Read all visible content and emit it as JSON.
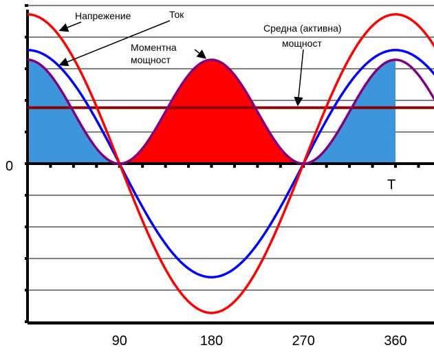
{
  "chart_data": {
    "type": "line",
    "x": [
      0,
      45,
      90,
      135,
      180,
      225,
      270,
      315,
      360,
      405
    ],
    "xlim": [
      0,
      405
    ],
    "ylim": [
      -1.0,
      1.0
    ],
    "x_tick_labels": [
      {
        "x": 90,
        "label": "90"
      },
      {
        "x": 180,
        "label": "180"
      },
      {
        "x": 270,
        "label": "270"
      },
      {
        "x": 360,
        "label": "360"
      }
    ],
    "zero_label": "0",
    "period_label": "T",
    "period_x": 360,
    "series": [
      {
        "name": "Напрежение",
        "kind": "cosine",
        "amplitude": 0.92,
        "color": "#ff0000"
      },
      {
        "name": "Ток",
        "kind": "cosine",
        "amplitude": 0.7,
        "color": "#0000ff"
      },
      {
        "name": "Моментна мощност",
        "kind": "power",
        "peak": 0.64,
        "color": "#800080",
        "fill_color": "#ff0000",
        "fill_color_alt": "#3d95db"
      },
      {
        "name": "Средна (активна) мощност",
        "kind": "constant",
        "value": 0.345,
        "color": "#8b0000"
      }
    ],
    "annotations": {
      "voltage": "Напрежение",
      "current": "Ток",
      "instant_power_line1": "Моментна",
      "instant_power_line2": "мощност",
      "average_power_line1": "Средна (активна)",
      "average_power_line2": "мощност"
    },
    "grid": true
  }
}
